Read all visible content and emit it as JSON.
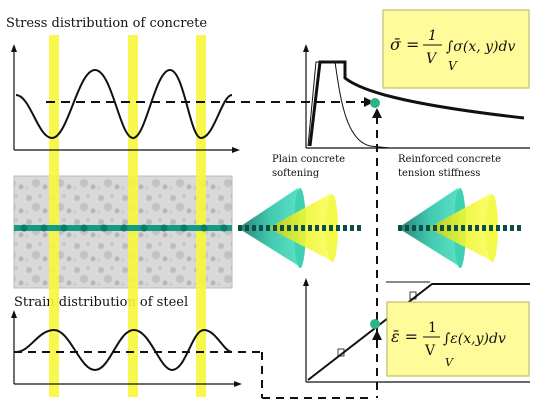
{
  "labels": {
    "stress_title": "Stress distribution of concrete",
    "strain_title": "Strain distribution of steel",
    "plain_concrete": [
      "Plain concrete",
      "softening"
    ],
    "reinforced_concrete": [
      "Reinforced concrete",
      "tension stiffness"
    ]
  },
  "formulas": {
    "stress": {
      "lhs": "σ̄ =",
      "num": "1",
      "den": "V",
      "body": "∫σ(x, y)dv",
      "sub": "V"
    },
    "strain": {
      "lhs": "ε̄ =",
      "num": "1",
      "den": "V",
      "body": "∫ε(x,y)dv",
      "sub": "V"
    }
  },
  "colors": {
    "highlight": "#f6f63a",
    "formula_box": "#fffb9a",
    "point": "#2bb48a",
    "teal": "#1a9a8a",
    "concrete": "#d6d6d6"
  }
}
